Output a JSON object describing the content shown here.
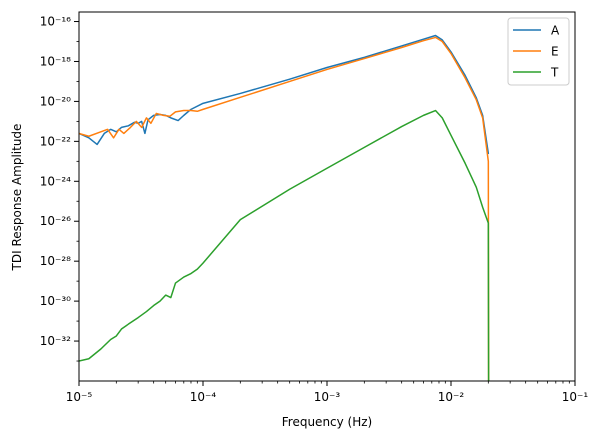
{
  "chart_data": {
    "type": "line",
    "xscale": "log",
    "yscale": "log",
    "xlabel": "Frequency (Hz)",
    "ylabel": "TDI Response Amplitude",
    "xlim": [
      1e-05,
      0.1
    ],
    "ylim": [
      1e-34,
      3e-16
    ],
    "grid": false,
    "legend_position": "top-right",
    "x_ticks": [
      {
        "value": 1e-05,
        "label": "10⁻⁵"
      },
      {
        "value": 0.0001,
        "label": "10⁻⁴"
      },
      {
        "value": 0.001,
        "label": "10⁻³"
      },
      {
        "value": 0.01,
        "label": "10⁻²"
      },
      {
        "value": 0.1,
        "label": "10⁻¹"
      }
    ],
    "y_ticks": [
      {
        "value": 1e-16,
        "label": "10⁻¹⁶"
      },
      {
        "value": 1e-18,
        "label": "10⁻¹⁸"
      },
      {
        "value": 1e-20,
        "label": "10⁻²⁰"
      },
      {
        "value": 1e-22,
        "label": "10⁻²²"
      },
      {
        "value": 1e-24,
        "label": "10⁻²⁴"
      },
      {
        "value": 1e-26,
        "label": "10⁻²⁶"
      },
      {
        "value": 1e-28,
        "label": "10⁻²⁸"
      },
      {
        "value": 1e-30,
        "label": "10⁻³⁰"
      },
      {
        "value": 1e-32,
        "label": "10⁻³²"
      }
    ],
    "series": [
      {
        "name": "A",
        "color": "#1f77b4",
        "points": [
          [
            1e-05,
            2.5e-22
          ],
          [
            1.2e-05,
            1.5e-22
          ],
          [
            1.4e-05,
            7e-23
          ],
          [
            1.6e-05,
            2.5e-22
          ],
          [
            1.8e-05,
            4e-22
          ],
          [
            2e-05,
            3e-22
          ],
          [
            2.2e-05,
            5e-22
          ],
          [
            2.5e-05,
            6e-22
          ],
          [
            2.8e-05,
            9e-22
          ],
          [
            3e-05,
            8e-22
          ],
          [
            3.2e-05,
            1e-21
          ],
          [
            3.4e-05,
            2.5e-22
          ],
          [
            3.6e-05,
            1.2e-21
          ],
          [
            4e-05,
            2e-21
          ],
          [
            4.5e-05,
            2.2e-21
          ],
          [
            5e-05,
            2e-21
          ],
          [
            5.5e-05,
            1.5e-21
          ],
          [
            6.3e-05,
            1.1e-21
          ],
          [
            7e-05,
            2e-21
          ],
          [
            8e-05,
            4e-21
          ],
          [
            0.0001,
            8e-21
          ],
          [
            0.0002,
            2.5e-20
          ],
          [
            0.0005,
            1.3e-19
          ],
          [
            0.001,
            5e-19
          ],
          [
            0.002,
            1.6e-18
          ],
          [
            0.004,
            6e-18
          ],
          [
            0.006,
            1.3e-17
          ],
          [
            0.0075,
            2e-17
          ],
          [
            0.0085,
            1.2e-17
          ],
          [
            0.01,
            3e-18
          ],
          [
            0.013,
            2e-19
          ],
          [
            0.016,
            1.5e-20
          ],
          [
            0.018,
            2e-21
          ],
          [
            0.02,
            2.5e-23
          ]
        ]
      },
      {
        "name": "E",
        "color": "#ff7f0e",
        "points": [
          [
            1e-05,
            2.5e-22
          ],
          [
            1.2e-05,
            1.8e-22
          ],
          [
            1.5e-05,
            3e-22
          ],
          [
            1.7e-05,
            4e-22
          ],
          [
            1.9e-05,
            1.5e-22
          ],
          [
            2.1e-05,
            4e-22
          ],
          [
            2.3e-05,
            2.5e-22
          ],
          [
            2.6e-05,
            5e-22
          ],
          [
            2.9e-05,
            1e-21
          ],
          [
            3.2e-05,
            5e-22
          ],
          [
            3.5e-05,
            1.5e-21
          ],
          [
            3.8e-05,
            8e-22
          ],
          [
            4.2e-05,
            2.5e-21
          ],
          [
            4.8e-05,
            2e-21
          ],
          [
            5.4e-05,
            1.8e-21
          ],
          [
            6e-05,
            3e-21
          ],
          [
            7e-05,
            3.5e-21
          ],
          [
            8e-05,
            3.5e-21
          ],
          [
            9e-05,
            3.2e-21
          ],
          [
            0.0001,
            4e-21
          ],
          [
            0.0002,
            1.6e-20
          ],
          [
            0.0005,
            1e-19
          ],
          [
            0.001,
            4e-19
          ],
          [
            0.002,
            1.4e-18
          ],
          [
            0.004,
            5e-18
          ],
          [
            0.006,
            1.1e-17
          ],
          [
            0.0075,
            1.6e-17
          ],
          [
            0.0085,
            1e-17
          ],
          [
            0.01,
            2.5e-18
          ],
          [
            0.013,
            1.5e-19
          ],
          [
            0.016,
            1.2e-20
          ],
          [
            0.018,
            1.5e-21
          ],
          [
            0.02,
            1e-23
          ],
          [
            0.0201,
            1e-34
          ]
        ]
      },
      {
        "name": "T",
        "color": "#2ca02c",
        "points": [
          [
            1e-05,
            1e-33
          ],
          [
            1.2e-05,
            1.3e-33
          ],
          [
            1.5e-05,
            4e-33
          ],
          [
            1.8e-05,
            1.2e-32
          ],
          [
            2e-05,
            1.8e-32
          ],
          [
            2.2e-05,
            4e-32
          ],
          [
            2.5e-05,
            7e-32
          ],
          [
            3e-05,
            1.5e-31
          ],
          [
            3.5e-05,
            3e-31
          ],
          [
            4e-05,
            6e-31
          ],
          [
            4.5e-05,
            1e-30
          ],
          [
            5e-05,
            2e-30
          ],
          [
            5.5e-05,
            1.5e-30
          ],
          [
            6e-05,
            8e-30
          ],
          [
            7e-05,
            1.6e-29
          ],
          [
            8e-05,
            2.4e-29
          ],
          [
            9e-05,
            4e-29
          ],
          [
            0.0001,
            8e-29
          ],
          [
            0.0002,
            1.2e-26
          ],
          [
            0.0005,
            4e-25
          ],
          [
            0.001,
            4.5e-24
          ],
          [
            0.002,
            5e-23
          ],
          [
            0.004,
            5.5e-22
          ],
          [
            0.006,
            2e-21
          ],
          [
            0.0075,
            3.5e-21
          ],
          [
            0.0085,
            1.5e-21
          ],
          [
            0.01,
            2e-22
          ],
          [
            0.013,
            8e-24
          ],
          [
            0.016,
            5e-25
          ],
          [
            0.018,
            5e-26
          ],
          [
            0.02,
            8e-27
          ],
          [
            0.0201,
            1e-34
          ]
        ]
      }
    ]
  }
}
